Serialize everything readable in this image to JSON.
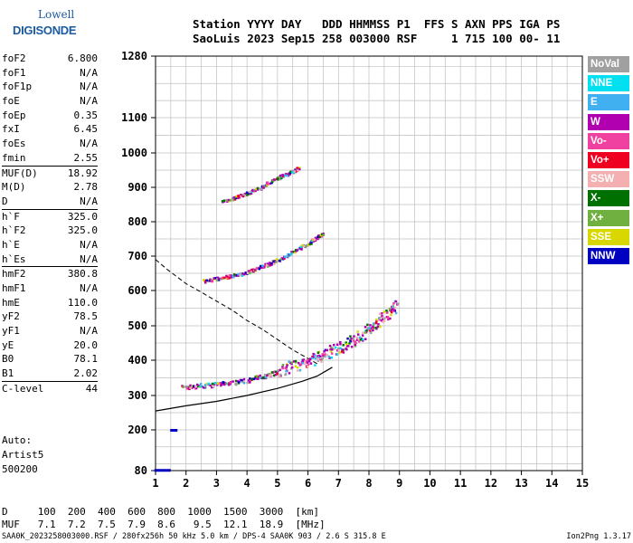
{
  "logo": {
    "line1": "Lowell",
    "line2": "DIGISONDE"
  },
  "header": {
    "line1": "Station YYYY DAY   DDD HHMMSS P1  FFS S AXN PPS IGA PS",
    "line2": "SaoLuis 2023 Sep15 258 003000 RSF     1 715 100 00- 11"
  },
  "params": [
    [
      [
        "foF2",
        "6.800"
      ],
      [
        "foF1",
        "N/A"
      ],
      [
        "foF1p",
        "N/A"
      ],
      [
        "foE",
        "N/A"
      ],
      [
        "foEp",
        "0.35"
      ],
      [
        "fxI",
        "6.45"
      ],
      [
        "foEs",
        "N/A"
      ],
      [
        "fmin",
        "2.55"
      ]
    ],
    [
      [
        "MUF(D)",
        "18.92"
      ],
      [
        "M(D)",
        "2.78"
      ],
      [
        "D",
        "N/A"
      ]
    ],
    [
      [
        "h`F",
        "325.0"
      ],
      [
        "h`F2",
        "325.0"
      ],
      [
        "h`E",
        "N/A"
      ],
      [
        "h`Es",
        "N/A"
      ]
    ],
    [
      [
        "hmF2",
        "380.8"
      ],
      [
        "hmF1",
        "N/A"
      ],
      [
        "hmE",
        "110.0"
      ],
      [
        "yF2",
        "78.5"
      ],
      [
        "yF1",
        "N/A"
      ],
      [
        "yE",
        "20.0"
      ],
      [
        "B0",
        "78.1"
      ],
      [
        "B1",
        "2.02"
      ]
    ],
    [
      [
        "C-level",
        "44"
      ]
    ]
  ],
  "auto": {
    "line1": "Auto:",
    "line2": "Artist5",
    "line3": "500200"
  },
  "legend": [
    {
      "label": "NoVal",
      "color": "#a0a0a0"
    },
    {
      "label": "NNE",
      "color": "#00e0f0"
    },
    {
      "label": "E",
      "color": "#40b0f0"
    },
    {
      "label": "W",
      "color": "#b000b0"
    },
    {
      "label": "Vo-",
      "color": "#f040a0"
    },
    {
      "label": "Vo+",
      "color": "#f00020"
    },
    {
      "label": "SSW",
      "color": "#f4b0b0"
    },
    {
      "label": "X-",
      "color": "#007000"
    },
    {
      "label": "X+",
      "color": "#70b040"
    },
    {
      "label": "SSE",
      "color": "#d8d800"
    },
    {
      "label": "NNW",
      "color": "#0000c0"
    }
  ],
  "muf_table": {
    "line1": "D     100  200  400  600  800  1000  1500  3000  [km]",
    "line2": "MUF   7.1  7.2  7.5  7.9  8.6   9.5  12.1  18.9  [MHz]"
  },
  "footer": {
    "left": "SAA0K_2023258003000.RSF / 280fx256h 50 kHz 5.0 km / DPS-4 SAA0K 903 / 2.6 S 315.8 E",
    "right": "Ion2Png 1.3.17"
  },
  "chart_data": {
    "type": "scatter",
    "title": "",
    "xlabel": "",
    "ylabel": "",
    "xlim": [
      1,
      15
    ],
    "ylim": [
      80,
      1280
    ],
    "x_ticks": [
      1,
      2,
      3,
      4,
      5,
      6,
      7,
      8,
      9,
      10,
      11,
      12,
      13,
      14,
      15
    ],
    "y_ticks": [
      80,
      200,
      300,
      400,
      500,
      600,
      700,
      800,
      900,
      1000,
      1100,
      1280
    ],
    "grid": true,
    "traces": [
      {
        "name": "o-trace",
        "color": "#b000b0",
        "points": [
          [
            1.9,
            325
          ],
          [
            2.5,
            330
          ],
          [
            3.2,
            335
          ],
          [
            4.0,
            345
          ],
          [
            4.6,
            360
          ],
          [
            5.2,
            375
          ],
          [
            5.8,
            395
          ],
          [
            6.3,
            410
          ],
          [
            6.8,
            430
          ],
          [
            7.3,
            450
          ],
          [
            7.8,
            480
          ],
          [
            8.2,
            510
          ],
          [
            8.6,
            540
          ],
          [
            8.9,
            560
          ]
        ]
      },
      {
        "name": "2nd hop",
        "color": "#b000b0",
        "points": [
          [
            2.6,
            630
          ],
          [
            3.2,
            640
          ],
          [
            3.8,
            650
          ],
          [
            4.4,
            670
          ],
          [
            5.0,
            690
          ],
          [
            5.6,
            720
          ],
          [
            6.1,
            745
          ],
          [
            6.5,
            770
          ]
        ]
      },
      {
        "name": "3rd hop",
        "color": "#b000b0",
        "points": [
          [
            3.2,
            860
          ],
          [
            3.8,
            880
          ],
          [
            4.4,
            900
          ],
          [
            4.9,
            925
          ],
          [
            5.4,
            945
          ],
          [
            5.7,
            960
          ]
        ]
      }
    ],
    "electron_density_profile": [
      [
        1.0,
        255
      ],
      [
        2.0,
        270
      ],
      [
        3.0,
        283
      ],
      [
        4.0,
        300
      ],
      [
        5.0,
        320
      ],
      [
        5.8,
        340
      ],
      [
        6.3,
        355
      ],
      [
        6.6,
        370
      ],
      [
        6.8,
        380
      ]
    ],
    "predicted_x_trace": [
      [
        1.0,
        690
      ],
      [
        1.4,
        660
      ],
      [
        2.0,
        620
      ],
      [
        2.5,
        595
      ],
      [
        3.0,
        570
      ],
      [
        3.5,
        545
      ],
      [
        4.0,
        515
      ],
      [
        4.5,
        490
      ],
      [
        5.0,
        460
      ],
      [
        5.5,
        430
      ],
      [
        6.0,
        405
      ],
      [
        6.3,
        390
      ]
    ]
  }
}
